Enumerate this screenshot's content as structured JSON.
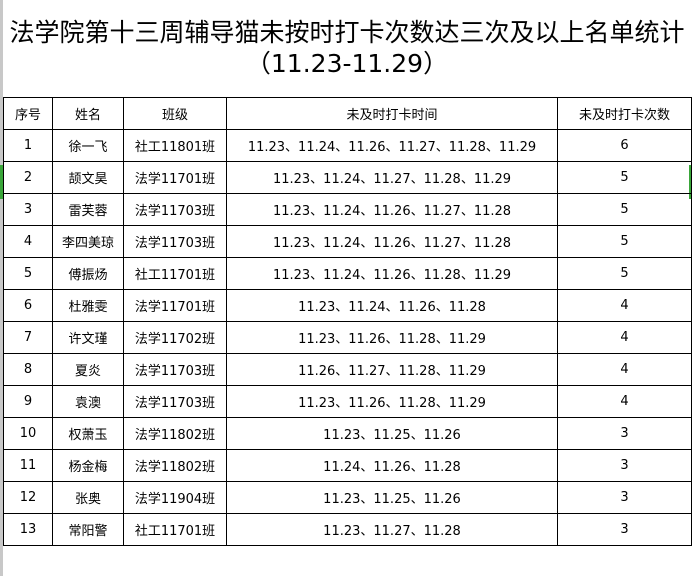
{
  "title": {
    "line1": "法学院第十三周辅导猫未按时打卡次数达三次及以上名单统计",
    "line2": "（11.23-11.29）"
  },
  "headers": [
    "序号",
    "姓名",
    "班级",
    "未及时打卡时间",
    "未及时打卡次数"
  ],
  "rows": [
    [
      "1",
      "徐一飞",
      "社工11801班",
      "11.23、11.24、11.26、11.27、11.28、11.29",
      "6"
    ],
    [
      "2",
      "颉文昊",
      "法学11701班",
      "11.23、11.24、11.27、11.28、11.29",
      "5"
    ],
    [
      "3",
      "雷芙蓉",
      "法学11703班",
      "11.23、11.24、11.26、11.27、11.28",
      "5"
    ],
    [
      "4",
      "李四美琼",
      "法学11703班",
      "11.23、11.24、11.26、11.27、11.28",
      "5"
    ],
    [
      "5",
      "傅振炀",
      "社工11701班",
      "11.23、11.24、11.26、11.28、11.29",
      "5"
    ],
    [
      "6",
      "杜雅雯",
      "法学11701班",
      "11.23、11.24、11.26、11.28",
      "4"
    ],
    [
      "7",
      "许文瑾",
      "法学11702班",
      "11.23、11.26、11.28、11.29",
      "4"
    ],
    [
      "8",
      "夏炎",
      "法学11703班",
      "11.26、11.27、11.28、11.29",
      "4"
    ],
    [
      "9",
      "袁澳",
      "法学11703班",
      "11.23、11.26、11.28、11.29",
      "4"
    ],
    [
      "10",
      "权萧玉",
      "法学11802班",
      "11.23、11.25、11.26",
      "3"
    ],
    [
      "11",
      "杨金梅",
      "法学11802班",
      "11.24、11.26、11.28",
      "3"
    ],
    [
      "12",
      "张奥",
      "法学11904班",
      "11.23、11.25、11.26",
      "3"
    ],
    [
      "13",
      "常阳警",
      "社工11701班",
      "11.23、11.27、11.28",
      "3"
    ]
  ],
  "selection_color": "#3aa63a"
}
